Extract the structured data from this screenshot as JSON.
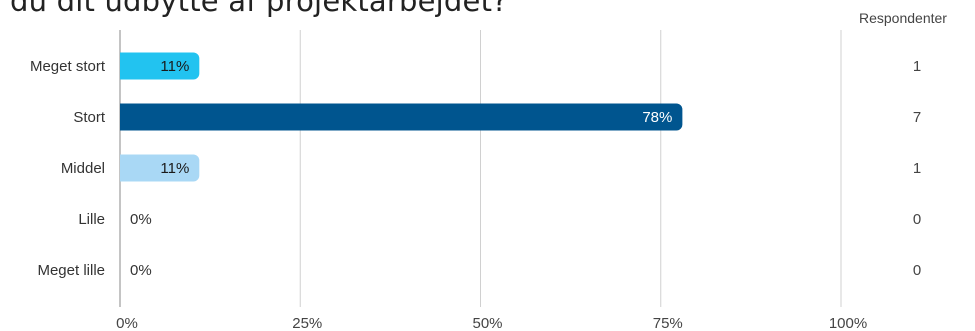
{
  "title": "du dit udbytte af projektarbejdet?",
  "respondents_header": "Respondenter",
  "chart_data": {
    "type": "bar",
    "orientation": "horizontal",
    "categories": [
      "Meget stort",
      "Stort",
      "Middel",
      "Lille",
      "Meget lille"
    ],
    "values": [
      11,
      78,
      11,
      0,
      0
    ],
    "value_labels": [
      "11%",
      "78%",
      "11%",
      "0%",
      "0%"
    ],
    "respondents": [
      "1",
      "7",
      "1",
      "0",
      "0"
    ],
    "bar_colors": [
      "#22c3f0",
      "#00558f",
      "#a9d8f5",
      "#a9d8f5",
      "#a9d8f5"
    ],
    "label_colors": [
      "#1a1a1a",
      "#ffffff",
      "#1a1a1a",
      "#333333",
      "#333333"
    ],
    "xlim": [
      0,
      100
    ],
    "x_ticks": [
      0,
      25,
      50,
      75,
      100
    ],
    "x_tick_labels": [
      "0%",
      "25%",
      "50%",
      "75%",
      "100%"
    ],
    "grid": true,
    "grid_color": "#d0d0d0"
  }
}
